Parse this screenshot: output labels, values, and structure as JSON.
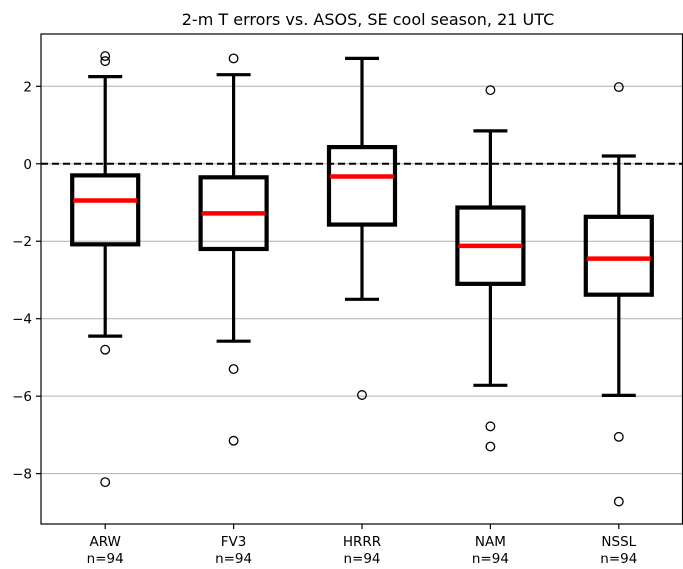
{
  "chart_data": {
    "type": "box",
    "title": "2-m T errors vs. ASOS, SE cool season, 21 UTC",
    "xlabel": "",
    "ylabel": "",
    "ylim": [
      -9.3,
      3.35
    ],
    "yticks": [
      2,
      0,
      -2,
      -4,
      -6,
      -8
    ],
    "ytick_labels": [
      "2",
      "0",
      "−2",
      "−4",
      "−6",
      "−8"
    ],
    "grid": "y",
    "reference_line": 0,
    "categories": [
      {
        "name": "ARW",
        "count_label": "n=94"
      },
      {
        "name": "FV3",
        "count_label": "n=94"
      },
      {
        "name": "HRRR",
        "count_label": "n=94"
      },
      {
        "name": "NAM",
        "count_label": "n=94"
      },
      {
        "name": "NSSL",
        "count_label": "n=94"
      }
    ],
    "boxes": [
      {
        "whisker_low": -4.45,
        "q1": -2.08,
        "median": -0.95,
        "q3": -0.3,
        "whisker_high": 2.25,
        "outliers": [
          2.78,
          2.65,
          -4.8,
          -8.22
        ]
      },
      {
        "whisker_low": -4.58,
        "q1": -2.2,
        "median": -1.28,
        "q3": -0.35,
        "whisker_high": 2.3,
        "outliers": [
          2.72,
          -5.3,
          -7.15
        ]
      },
      {
        "whisker_low": -3.5,
        "q1": -1.57,
        "median": -0.33,
        "q3": 0.43,
        "whisker_high": 2.72,
        "outliers": [
          -5.97
        ]
      },
      {
        "whisker_low": -5.72,
        "q1": -3.1,
        "median": -2.12,
        "q3": -1.13,
        "whisker_high": 0.85,
        "outliers": [
          1.9,
          -6.78,
          -7.3
        ]
      },
      {
        "whisker_low": -5.98,
        "q1": -3.38,
        "median": -2.45,
        "q3": -1.37,
        "whisker_high": 0.2,
        "outliers": [
          1.98,
          -7.05,
          -8.72
        ]
      }
    ],
    "colors": {
      "box": "#000000",
      "median": "#ff0000",
      "grid": "#b0b0b0",
      "reference_line": "#000000"
    }
  }
}
